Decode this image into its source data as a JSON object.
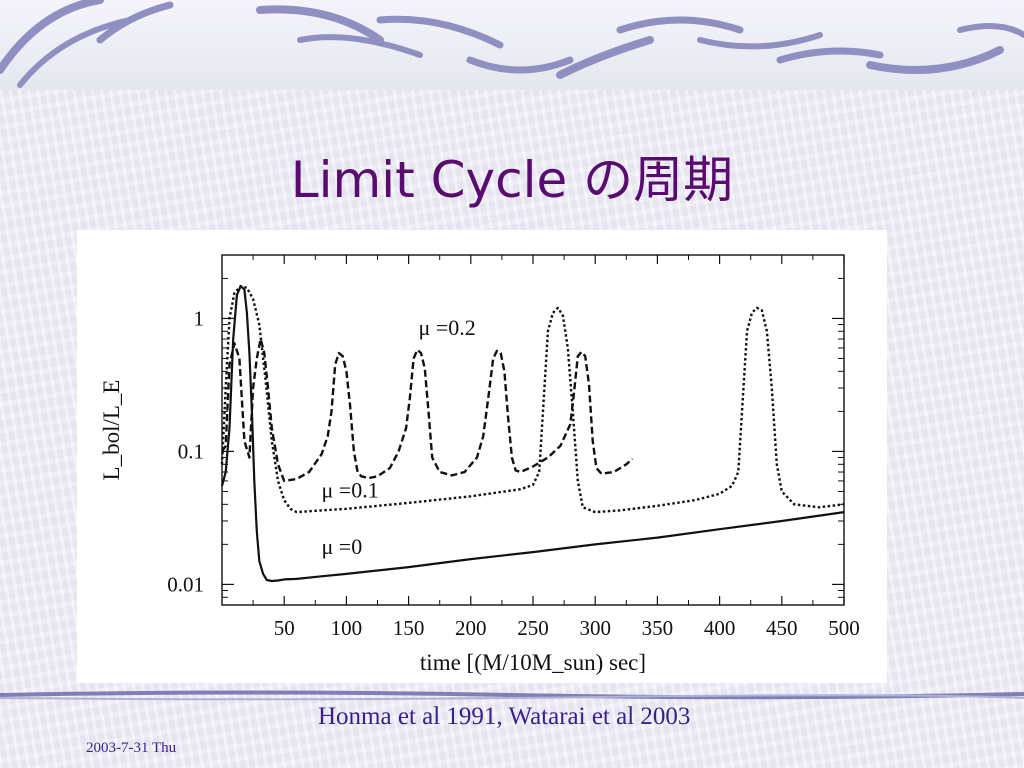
{
  "slide": {
    "title": "Limit Cycle の周期",
    "citation": "Honma et al 1991, Watarai et al 2003",
    "date": "2003-7-31 Thu",
    "title_color": "#5a0b70",
    "text_color": "#3a1f8c",
    "accent_color": "#7f7fb8"
  },
  "chart_data": {
    "type": "line",
    "xlabel": "time [(M/10M_sun) sec]",
    "ylabel": "L_bol/L_E",
    "yscale": "log",
    "xlim": [
      0,
      500
    ],
    "ylim": [
      0.007,
      3
    ],
    "x_ticks": [
      50,
      100,
      150,
      200,
      250,
      300,
      350,
      400,
      450,
      500
    ],
    "x_tick_labels": [
      "50",
      "100",
      "150",
      "200",
      "250",
      "300",
      "350",
      "400",
      "450",
      "500"
    ],
    "y_ticks": [
      0.01,
      0.1,
      1
    ],
    "y_tick_labels": [
      "0.01",
      "0.1",
      "1"
    ],
    "grid": false,
    "series": [
      {
        "name": "μ =0",
        "style": "solid",
        "x": [
          0,
          3,
          6,
          9,
          12,
          15,
          18,
          20,
          22,
          24,
          26,
          28,
          30,
          33,
          36,
          40,
          45,
          50,
          60,
          80,
          100,
          150,
          200,
          250,
          300,
          350,
          400,
          450,
          500
        ],
        "y": [
          0.055,
          0.07,
          0.15,
          0.7,
          1.5,
          1.75,
          1.65,
          1.1,
          0.55,
          0.2,
          0.06,
          0.025,
          0.015,
          0.012,
          0.0108,
          0.0106,
          0.0107,
          0.0109,
          0.011,
          0.0115,
          0.012,
          0.0135,
          0.0155,
          0.0175,
          0.02,
          0.0225,
          0.026,
          0.03,
          0.035
        ]
      },
      {
        "name": "μ =0.1",
        "style": "dotted",
        "x": [
          0,
          3,
          6,
          10,
          15,
          20,
          25,
          30,
          35,
          40,
          45,
          50,
          55,
          60,
          80,
          100,
          150,
          200,
          240,
          250,
          255,
          258,
          262,
          266,
          270,
          274,
          278,
          282,
          286,
          290,
          300,
          320,
          350,
          380,
          400,
          410,
          415,
          418,
          422,
          426,
          430,
          434,
          438,
          442,
          446,
          450,
          460,
          480,
          500
        ],
        "y": [
          0.08,
          0.3,
          1.0,
          1.55,
          1.75,
          1.7,
          1.4,
          0.9,
          0.35,
          0.12,
          0.06,
          0.043,
          0.037,
          0.035,
          0.036,
          0.037,
          0.041,
          0.046,
          0.052,
          0.056,
          0.07,
          0.2,
          0.8,
          1.1,
          1.2,
          1.05,
          0.6,
          0.2,
          0.06,
          0.038,
          0.035,
          0.036,
          0.039,
          0.043,
          0.048,
          0.055,
          0.07,
          0.2,
          0.8,
          1.1,
          1.2,
          1.15,
          0.8,
          0.3,
          0.08,
          0.05,
          0.04,
          0.038,
          0.04
        ]
      },
      {
        "name": "μ =0.2",
        "style": "dashed",
        "x": [
          0,
          3,
          6,
          10,
          14,
          18,
          22,
          25,
          28,
          31,
          34,
          37,
          40,
          45,
          50,
          60,
          70,
          80,
          85,
          88,
          91,
          94,
          97,
          100,
          103,
          106,
          109,
          112,
          118,
          125,
          135,
          142,
          148,
          151,
          154,
          157,
          160,
          163,
          166,
          169,
          175,
          185,
          195,
          205,
          210,
          214,
          218,
          221,
          224,
          227,
          230,
          233,
          236,
          240,
          250,
          262,
          272,
          280,
          283,
          286,
          289,
          292,
          295,
          298,
          301,
          305,
          315,
          325,
          330
        ],
        "y": [
          0.1,
          0.11,
          0.45,
          0.65,
          0.5,
          0.12,
          0.09,
          0.3,
          0.5,
          0.7,
          0.55,
          0.3,
          0.15,
          0.08,
          0.06,
          0.062,
          0.07,
          0.095,
          0.13,
          0.2,
          0.45,
          0.55,
          0.52,
          0.4,
          0.22,
          0.1,
          0.07,
          0.065,
          0.063,
          0.065,
          0.075,
          0.1,
          0.15,
          0.25,
          0.5,
          0.58,
          0.55,
          0.42,
          0.2,
          0.09,
          0.07,
          0.066,
          0.07,
          0.09,
          0.13,
          0.25,
          0.5,
          0.57,
          0.55,
          0.4,
          0.18,
          0.09,
          0.072,
          0.07,
          0.077,
          0.09,
          0.11,
          0.16,
          0.28,
          0.52,
          0.56,
          0.52,
          0.32,
          0.12,
          0.075,
          0.068,
          0.07,
          0.08,
          0.088
        ]
      }
    ],
    "annotations": [
      {
        "text": "μ =0.2",
        "x": 158,
        "y": 0.75
      },
      {
        "text": "μ =0.1",
        "x": 80,
        "y": 0.045
      },
      {
        "text": "μ =0",
        "x": 80,
        "y": 0.017
      }
    ]
  }
}
